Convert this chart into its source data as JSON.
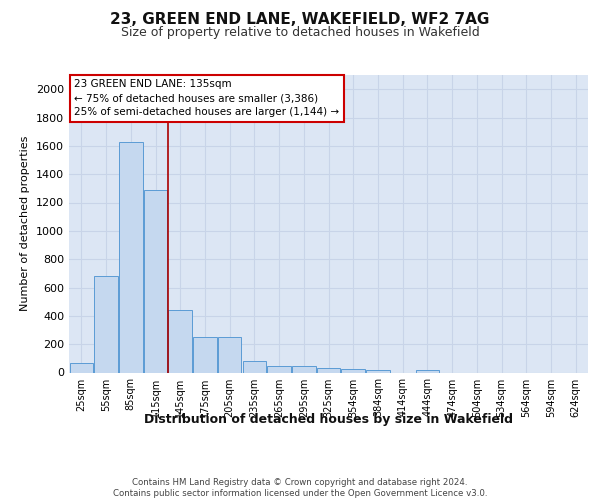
{
  "title1": "23, GREEN END LANE, WAKEFIELD, WF2 7AG",
  "title2": "Size of property relative to detached houses in Wakefield",
  "xlabel": "Distribution of detached houses by size in Wakefield",
  "ylabel": "Number of detached properties",
  "bar_labels": [
    "25sqm",
    "55sqm",
    "85sqm",
    "115sqm",
    "145sqm",
    "175sqm",
    "205sqm",
    "235sqm",
    "265sqm",
    "295sqm",
    "325sqm",
    "354sqm",
    "384sqm",
    "414sqm",
    "444sqm",
    "474sqm",
    "504sqm",
    "534sqm",
    "564sqm",
    "594sqm",
    "624sqm"
  ],
  "bar_values": [
    68,
    680,
    1630,
    1285,
    440,
    250,
    250,
    80,
    45,
    45,
    30,
    25,
    20,
    0,
    20,
    0,
    0,
    0,
    0,
    0,
    0
  ],
  "bar_color": "#c5d8ef",
  "bar_edge_color": "#5b9bd5",
  "annotation_box_text": "23 GREEN END LANE: 135sqm\n← 75% of detached houses are smaller (3,386)\n25% of semi-detached houses are larger (1,144) →",
  "annotation_box_color": "#ffffff",
  "annotation_box_edge_color": "#cc0000",
  "vline_color": "#aa0000",
  "ylim": [
    0,
    2100
  ],
  "yticks": [
    0,
    200,
    400,
    600,
    800,
    1000,
    1200,
    1400,
    1600,
    1800,
    2000
  ],
  "grid_color": "#c8d4e8",
  "bg_color": "#dce6f4",
  "footer_text": "Contains HM Land Registry data © Crown copyright and database right 2024.\nContains public sector information licensed under the Open Government Licence v3.0.",
  "vline_bar_index": 3.5
}
